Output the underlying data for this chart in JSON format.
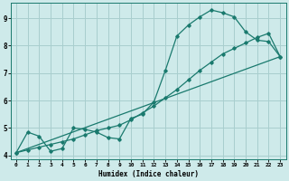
{
  "xlabel": "Humidex (Indice chaleur)",
  "bg_color": "#ceeaea",
  "grid_color": "#a8cece",
  "line_color": "#1a7a6e",
  "xlim": [
    -0.5,
    23.5
  ],
  "ylim": [
    3.85,
    9.55
  ],
  "yticks": [
    4,
    5,
    6,
    7,
    8,
    9
  ],
  "xticks": [
    0,
    1,
    2,
    3,
    4,
    5,
    6,
    7,
    8,
    9,
    10,
    11,
    12,
    13,
    14,
    15,
    16,
    17,
    18,
    19,
    20,
    21,
    22,
    23
  ],
  "line1_x": [
    0,
    1,
    2,
    3,
    4,
    5,
    6,
    7,
    8,
    9,
    10,
    11,
    12,
    13,
    14,
    15,
    16,
    17,
    18,
    19,
    20,
    21,
    22,
    23
  ],
  "line1_y": [
    4.1,
    4.85,
    4.7,
    4.15,
    4.25,
    5.0,
    4.95,
    4.85,
    4.65,
    4.6,
    5.35,
    5.5,
    5.95,
    7.1,
    8.35,
    8.75,
    9.05,
    9.3,
    9.2,
    9.05,
    8.5,
    8.2,
    8.15,
    7.6
  ],
  "line2_x": [
    0,
    1,
    2,
    3,
    4,
    5,
    6,
    7,
    8,
    9,
    10,
    11,
    12,
    13,
    14,
    15,
    16,
    17,
    18,
    19,
    20,
    21,
    22,
    23
  ],
  "line2_y": [
    4.1,
    4.2,
    4.3,
    4.4,
    4.5,
    4.6,
    4.75,
    4.9,
    5.0,
    5.1,
    5.3,
    5.55,
    5.8,
    6.1,
    6.4,
    6.75,
    7.1,
    7.4,
    7.7,
    7.9,
    8.1,
    8.3,
    8.45,
    7.6
  ],
  "line3_x": [
    0,
    23
  ],
  "line3_y": [
    4.1,
    7.6
  ]
}
